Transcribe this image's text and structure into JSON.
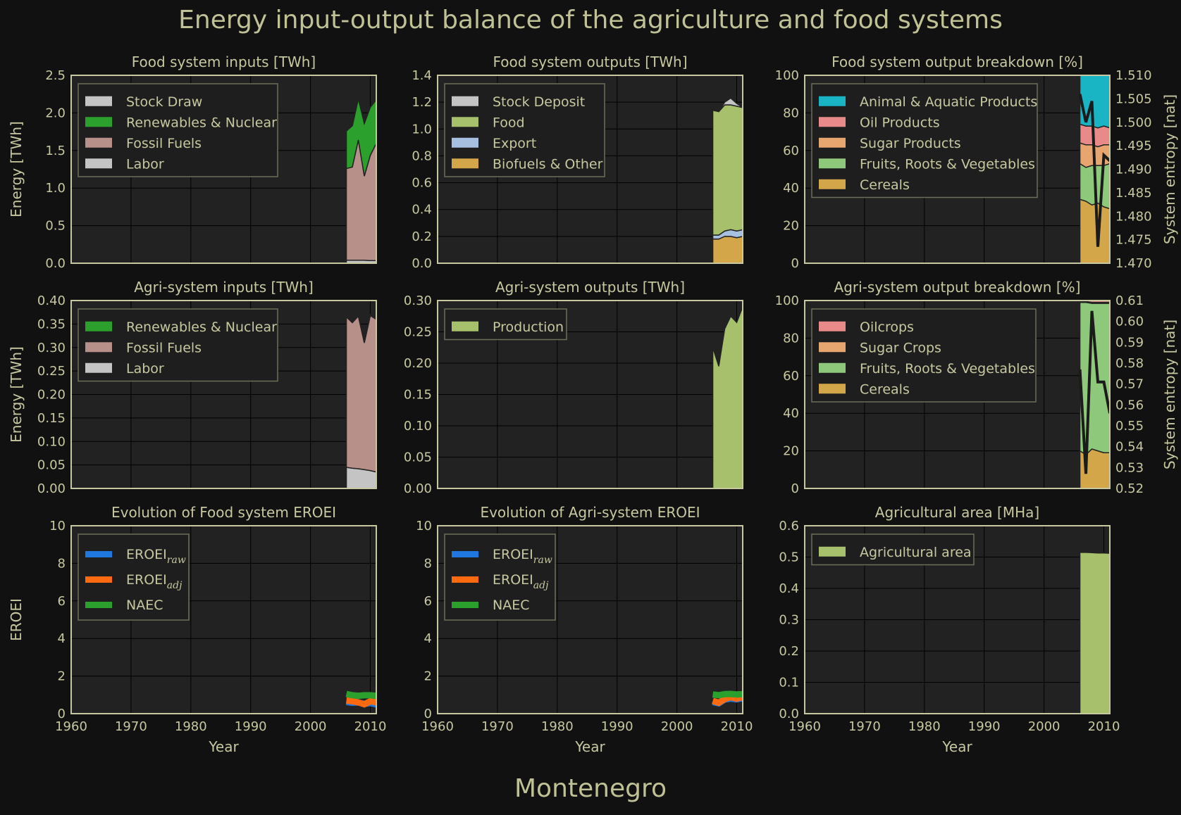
{
  "title": "Energy input-output balance of the agriculture and food systems",
  "footer": "Montenegro",
  "colors": {
    "background": "#111111",
    "panel": "#222222",
    "frame": "#c8c8a0",
    "grid": "#3a3a3a",
    "stock": "#c4c4c4",
    "renewables": "#2ca02c",
    "fossil": "#b8908a",
    "labor": "#c4c4c4",
    "food": "#a7c06b",
    "export": "#a8c0e0",
    "biofuels": "#d4a64a",
    "animal": "#19b5c5",
    "oil": "#e88a8a",
    "sugar": "#e7a56f",
    "fruits": "#8ec97b",
    "cereals": "#d4a64a",
    "eroei_raw": "#1f77e0",
    "eroei_adj": "#ff6a10",
    "naec": "#2ca02c"
  },
  "chart_data": [
    {
      "id": "food-inputs",
      "type": "area",
      "title": "Food system inputs [TWh]",
      "ylabel": "Energy [TWh]",
      "xlim": [
        1960,
        2011
      ],
      "ylim": [
        0,
        2.5
      ],
      "yticks": [
        "0.0",
        "0.5",
        "1.0",
        "1.5",
        "2.0",
        "2.5"
      ],
      "show_xticks": false,
      "x": [
        2006,
        2007,
        2008,
        2009,
        2010,
        2011
      ],
      "series": [
        {
          "name": "Labor",
          "color": "#c4c4c4",
          "values": [
            0.04,
            0.04,
            0.04,
            0.04,
            0.035,
            0.035
          ]
        },
        {
          "name": "Fossil Fuels",
          "color": "#b8908a",
          "values": [
            1.22,
            1.24,
            1.6,
            1.12,
            1.4,
            1.56
          ]
        },
        {
          "name": "Renewables & Nuclear",
          "color": "#2ca02c",
          "values": [
            0.5,
            0.55,
            0.55,
            0.7,
            0.64,
            0.58
          ]
        },
        {
          "name": "Stock Draw",
          "color": "#c4c4c4",
          "values": [
            0,
            0,
            0,
            0,
            0,
            0.01
          ]
        }
      ],
      "legend": [
        "Stock Draw",
        "Renewables & Nuclear",
        "Fossil Fuels",
        "Labor"
      ]
    },
    {
      "id": "food-outputs",
      "type": "area",
      "title": "Food system outputs [TWh]",
      "xlim": [
        1960,
        2011
      ],
      "ylim": [
        0,
        1.4
      ],
      "yticks": [
        "0.0",
        "0.2",
        "0.4",
        "0.6",
        "0.8",
        "1.0",
        "1.2",
        "1.4"
      ],
      "show_xticks": false,
      "x": [
        2006,
        2007,
        2008,
        2009,
        2010,
        2011
      ],
      "series": [
        {
          "name": "Biofuels & Other",
          "color": "#d4a64a",
          "values": [
            0.18,
            0.18,
            0.2,
            0.2,
            0.19,
            0.2
          ]
        },
        {
          "name": "Export",
          "color": "#a8c0e0",
          "values": [
            0.03,
            0.03,
            0.04,
            0.05,
            0.05,
            0.05
          ]
        },
        {
          "name": "Food",
          "color": "#a7c06b",
          "values": [
            0.93,
            0.92,
            0.94,
            0.93,
            0.93,
            0.91
          ]
        },
        {
          "name": "Stock Deposit",
          "color": "#c4c4c4",
          "values": [
            0,
            0,
            0.02,
            0.05,
            0.02,
            0
          ]
        }
      ],
      "legend": [
        "Stock Deposit",
        "Food",
        "Export",
        "Biofuels & Other"
      ]
    },
    {
      "id": "food-breakdown",
      "type": "area",
      "title": "Food system output breakdown [%]",
      "y2label": "System entropy [nat]",
      "xlim": [
        1960,
        2011
      ],
      "ylim": [
        0,
        100
      ],
      "yticks": [
        "0",
        "20",
        "40",
        "60",
        "80",
        "100"
      ],
      "y2lim": [
        1.47,
        1.51
      ],
      "y2ticks": [
        "1.470",
        "1.475",
        "1.480",
        "1.485",
        "1.490",
        "1.495",
        "1.500",
        "1.505",
        "1.510"
      ],
      "show_xticks": false,
      "x": [
        2006,
        2007,
        2008,
        2009,
        2010,
        2011
      ],
      "series": [
        {
          "name": "Cereals",
          "color": "#d4a64a",
          "values": [
            34,
            33,
            31,
            32,
            30,
            29
          ]
        },
        {
          "name": "Fruits, Roots & Vegetables",
          "color": "#8ec97b",
          "values": [
            19,
            18,
            21,
            20,
            22,
            24
          ]
        },
        {
          "name": "Sugar Products",
          "color": "#e7a56f",
          "values": [
            11,
            12,
            11,
            10,
            11,
            10
          ]
        },
        {
          "name": "Oil Products",
          "color": "#e88a8a",
          "values": [
            10,
            10,
            10,
            10,
            10,
            9
          ]
        },
        {
          "name": "Animal & Aquatic Products",
          "color": "#19b5c5",
          "values": [
            26,
            27,
            27,
            28,
            27,
            28
          ]
        }
      ],
      "entropy": [
        1.506,
        1.5,
        1.5045,
        1.4735,
        1.493,
        1.4918
      ],
      "legend": [
        "Animal & Aquatic Products",
        "Oil Products",
        "Sugar Products",
        "Fruits, Roots & Vegetables",
        "Cereals"
      ]
    },
    {
      "id": "agri-inputs",
      "type": "area",
      "title": "Agri-system inputs [TWh]",
      "ylabel": "Energy [TWh]",
      "xlim": [
        1960,
        2011
      ],
      "ylim": [
        0,
        0.4
      ],
      "yticks": [
        "0.00",
        "0.05",
        "0.10",
        "0.15",
        "0.20",
        "0.25",
        "0.30",
        "0.35",
        "0.40"
      ],
      "show_xticks": false,
      "x": [
        2006,
        2007,
        2008,
        2009,
        2010,
        2011
      ],
      "series": [
        {
          "name": "Labor",
          "color": "#c4c4c4",
          "values": [
            0.045,
            0.043,
            0.042,
            0.04,
            0.038,
            0.035
          ]
        },
        {
          "name": "Fossil Fuels",
          "color": "#b8908a",
          "values": [
            0.32,
            0.31,
            0.325,
            0.27,
            0.33,
            0.325
          ]
        },
        {
          "name": "Renewables & Nuclear",
          "color": "#2ca02c",
          "values": [
            0.002,
            0.002,
            0.002,
            0.002,
            0.002,
            0.002
          ]
        }
      ],
      "legend": [
        "Renewables & Nuclear",
        "Fossil Fuels",
        "Labor"
      ]
    },
    {
      "id": "agri-outputs",
      "type": "area",
      "title": "Agri-system outputs [TWh]",
      "xlim": [
        1960,
        2011
      ],
      "ylim": [
        0,
        0.3
      ],
      "yticks": [
        "0.00",
        "0.05",
        "0.10",
        "0.15",
        "0.20",
        "0.25",
        "0.30"
      ],
      "show_xticks": false,
      "x": [
        2006,
        2007,
        2008,
        2009,
        2010,
        2011
      ],
      "series": [
        {
          "name": "Production",
          "color": "#a7c06b",
          "values": [
            0.225,
            0.195,
            0.255,
            0.275,
            0.265,
            0.29
          ]
        }
      ],
      "legend": [
        "Production"
      ]
    },
    {
      "id": "agri-breakdown",
      "type": "area",
      "title": "Agri-system output breakdown [%]",
      "y2label": "System entropy [nat]",
      "xlim": [
        1960,
        2011
      ],
      "ylim": [
        0,
        100
      ],
      "yticks": [
        "0",
        "20",
        "40",
        "60",
        "80",
        "100"
      ],
      "y2lim": [
        0.52,
        0.61
      ],
      "y2ticks": [
        "0.52",
        "0.53",
        "0.54",
        "0.55",
        "0.56",
        "0.57",
        "0.58",
        "0.59",
        "0.60",
        "0.61"
      ],
      "show_xticks": false,
      "x": [
        2006,
        2007,
        2008,
        2009,
        2010,
        2011
      ],
      "series": [
        {
          "name": "Cereals",
          "color": "#d4a64a",
          "values": [
            20,
            18,
            21,
            20,
            19,
            19
          ]
        },
        {
          "name": "Fruits, Roots & Vegetables",
          "color": "#8ec97b",
          "values": [
            79,
            81,
            77.5,
            78.5,
            79.5,
            79.5
          ]
        },
        {
          "name": "Sugar Crops",
          "color": "#e7a56f",
          "values": [
            0.5,
            0.5,
            0.5,
            0.5,
            0.5,
            0.5
          ]
        },
        {
          "name": "Oilcrops",
          "color": "#e88a8a",
          "values": [
            0.5,
            0.5,
            1,
            1,
            1,
            1
          ]
        }
      ],
      "entropy": [
        0.577,
        0.527,
        0.605,
        0.571,
        0.571,
        0.556
      ],
      "legend": [
        "Oilcrops",
        "Sugar Crops",
        "Fruits, Roots & Vegetables",
        "Cereals"
      ]
    },
    {
      "id": "food-eroei",
      "type": "line",
      "title": "Evolution of Food system EROEI",
      "ylabel": "EROEI",
      "xlabel": "Year",
      "xlim": [
        1960,
        2011
      ],
      "ylim": [
        0,
        10
      ],
      "yticks": [
        "0",
        "2",
        "4",
        "6",
        "8",
        "10"
      ],
      "xticks": [
        "1960",
        "1970",
        "1980",
        "1990",
        "2000",
        "2010"
      ],
      "show_xticks": true,
      "x": [
        2006,
        2007,
        2008,
        2009,
        2010,
        2011
      ],
      "series": [
        {
          "name": "EROEI",
          "sub": "raw",
          "color": "#1f77e0",
          "values": [
            0.62,
            0.58,
            0.6,
            0.52,
            0.56,
            0.5
          ]
        },
        {
          "name": "EROEI",
          "sub": "adj",
          "color": "#ff6a10",
          "values": [
            0.7,
            0.66,
            0.6,
            0.5,
            0.66,
            0.6
          ]
        },
        {
          "name": "NAEC",
          "sub": "",
          "color": "#2ca02c",
          "values": [
            1.05,
            0.98,
            0.95,
            0.98,
            0.98,
            0.95
          ]
        }
      ]
    },
    {
      "id": "agri-eroei",
      "type": "line",
      "title": "Evolution of Agri-system EROEI",
      "xlabel": "Year",
      "xlim": [
        1960,
        2011
      ],
      "ylim": [
        0,
        10
      ],
      "yticks": [
        "0",
        "2",
        "4",
        "6",
        "8",
        "10"
      ],
      "xticks": [
        "1960",
        "1970",
        "1980",
        "1990",
        "2000",
        "2010"
      ],
      "show_xticks": true,
      "x": [
        2006,
        2007,
        2008,
        2009,
        2010,
        2011
      ],
      "series": [
        {
          "name": "EROEI",
          "sub": "raw",
          "color": "#1f77e0",
          "values": [
            0.62,
            0.55,
            0.75,
            0.8,
            0.76,
            0.82
          ]
        },
        {
          "name": "EROEI",
          "sub": "adj",
          "color": "#ff6a10",
          "values": [
            0.68,
            0.58,
            0.78,
            0.88,
            0.8,
            0.88
          ]
        },
        {
          "name": "NAEC",
          "sub": "",
          "color": "#2ca02c",
          "values": [
            1.02,
            0.98,
            1.04,
            1.05,
            1.02,
            1.04
          ]
        }
      ]
    },
    {
      "id": "agri-area",
      "type": "area",
      "title": "Agricultural area [MHa]",
      "xlabel": "Year",
      "xlim": [
        1960,
        2011
      ],
      "ylim": [
        0,
        0.6
      ],
      "yticks": [
        "0.0",
        "0.1",
        "0.2",
        "0.3",
        "0.4",
        "0.5",
        "0.6"
      ],
      "xticks": [
        "1960",
        "1970",
        "1980",
        "1990",
        "2000",
        "2010"
      ],
      "show_xticks": true,
      "x": [
        2006,
        2007,
        2008,
        2009,
        2010,
        2011
      ],
      "series": [
        {
          "name": "Agricultural area",
          "color": "#a7c06b",
          "values": [
            0.515,
            0.515,
            0.514,
            0.513,
            0.513,
            0.512
          ]
        }
      ],
      "legend": [
        "Agricultural area"
      ]
    }
  ]
}
